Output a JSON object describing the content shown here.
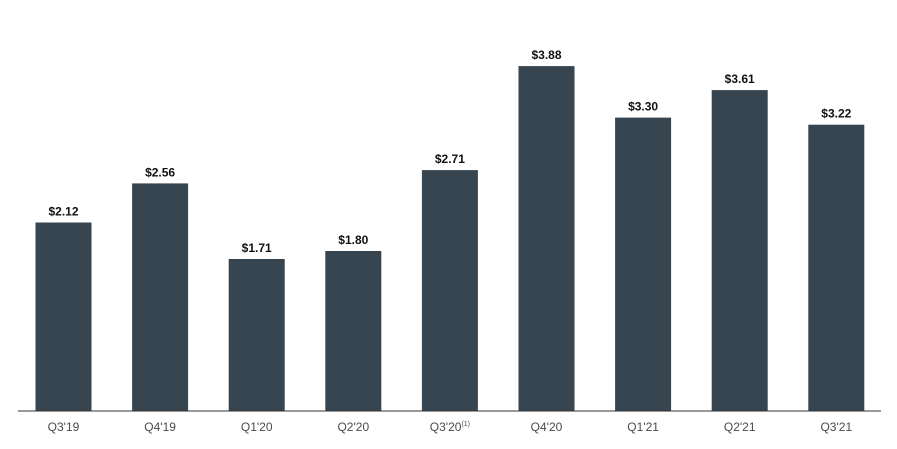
{
  "chart_data": {
    "type": "bar",
    "categories": [
      "Q3'19",
      "Q4'19",
      "Q1'20",
      "Q2'20",
      "Q3'20",
      "Q4'20",
      "Q1'21",
      "Q2'21",
      "Q3'21"
    ],
    "category_footnotes": [
      "",
      "",
      "",
      "",
      "(1)",
      "",
      "",
      "",
      ""
    ],
    "values": [
      2.12,
      2.56,
      1.71,
      1.8,
      2.71,
      3.88,
      3.3,
      3.61,
      3.22
    ],
    "value_labels": [
      "$2.12",
      "$2.56",
      "$1.71",
      "$1.80",
      "$2.71",
      "$3.88",
      "$3.30",
      "$3.61",
      "$3.22"
    ],
    "title": "",
    "xlabel": "",
    "ylabel": "",
    "ylim": [
      0,
      4.2
    ],
    "grid": false,
    "legend": "none",
    "bar_color": "#36454f",
    "axis_color": "#333333"
  }
}
